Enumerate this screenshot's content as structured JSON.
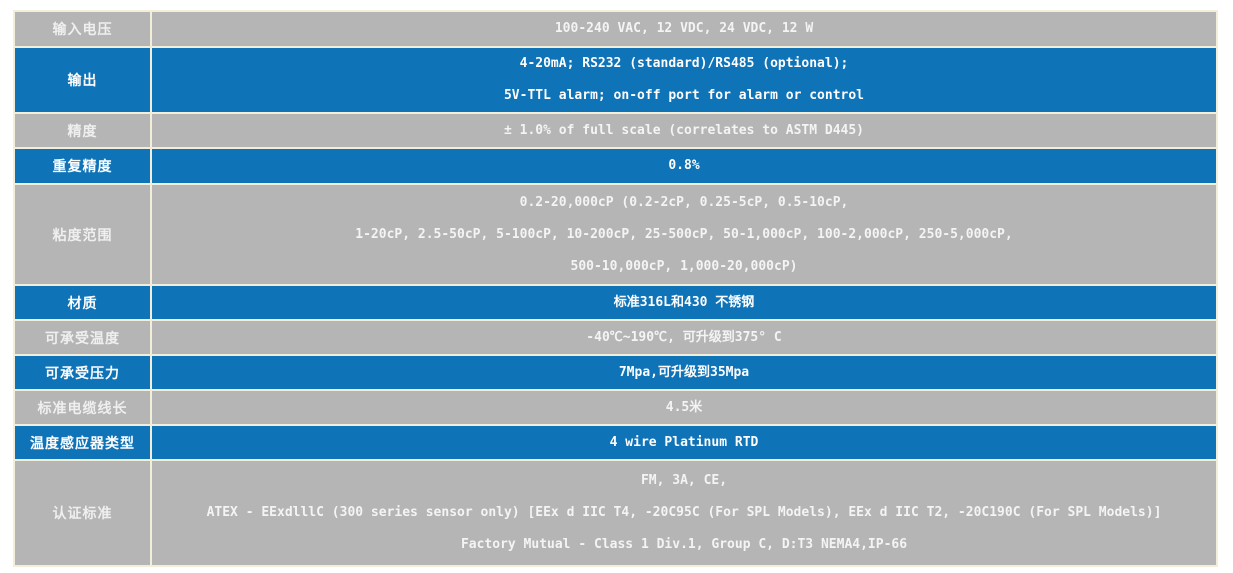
{
  "colors": {
    "row_blue": "#0f73b8",
    "row_gray": "#b5b5b5",
    "border_cream": "#f2eeda",
    "text_white": "#ffffff",
    "page_background": "#ffffff"
  },
  "table": {
    "rows": [
      {
        "label": "输入电压",
        "variant": "gray",
        "lines": [
          "100-240 VAC, 12 VDC, 24 VDC, 12 W"
        ]
      },
      {
        "label": "输出",
        "variant": "blue",
        "lines": [
          "4-20mA; RS232 (standard)/RS485 (optional);",
          "5V-TTL alarm; on-off port for alarm or control"
        ]
      },
      {
        "label": "精度",
        "variant": "gray",
        "lines": [
          "± 1.0% of full scale (correlates to ASTM D445)"
        ]
      },
      {
        "label": "重复精度",
        "variant": "blue",
        "lines": [
          "0.8%"
        ]
      },
      {
        "label": "粘度范围",
        "variant": "gray",
        "lines": [
          "0.2-20,000cP (0.2-2cP, 0.25-5cP, 0.5-10cP,",
          "1-20cP, 2.5-50cP, 5-100cP, 10-200cP, 25-500cP, 50-1,000cP, 100-2,000cP, 250-5,000cP,",
          "500-10,000cP, 1,000-20,000cP)"
        ]
      },
      {
        "label": "材质",
        "variant": "blue",
        "lines": [
          "标准316L和430 不锈钢"
        ]
      },
      {
        "label": "可承受温度",
        "variant": "gray",
        "lines": [
          "-40℃~190℃, 可升级到375° C"
        ]
      },
      {
        "label": "可承受压力",
        "variant": "blue",
        "lines": [
          "7Mpa,可升级到35Mpa"
        ]
      },
      {
        "label": "标准电缆线长",
        "variant": "gray",
        "lines": [
          "4.5米"
        ]
      },
      {
        "label": "温度感应器类型",
        "variant": "blue",
        "lines": [
          "4 wire Platinum RTD"
        ]
      },
      {
        "label": "认证标准",
        "variant": "gray",
        "lines": [
          "FM, 3A, CE,",
          "ATEX - EExdlllC (300 series sensor only) [EEx d IIC T4, -20C95C (For SPL Models), EEx d IIC T2, -20C190C (For SPL Models)]",
          "Factory Mutual - Class 1 Div.1, Group C, D:T3 NEMA4,IP-66"
        ]
      }
    ]
  }
}
